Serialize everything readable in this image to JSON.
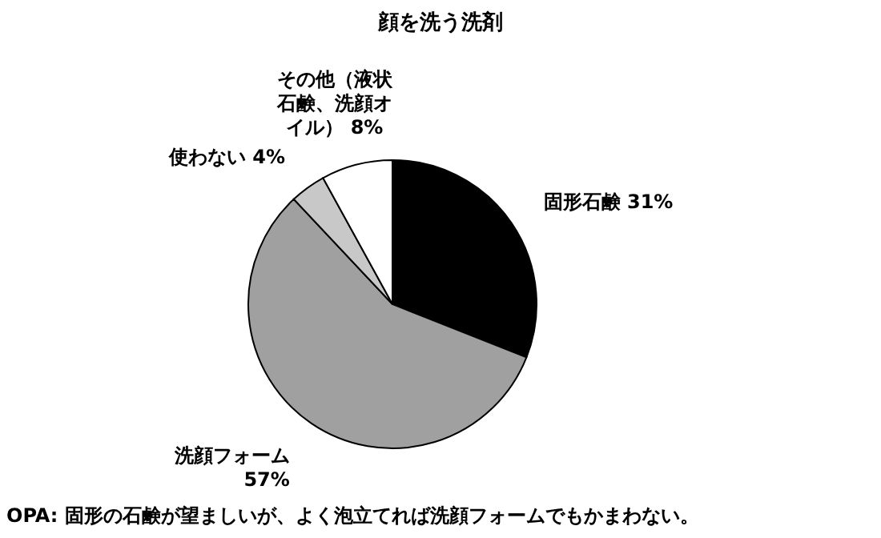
{
  "chart_data": {
    "type": "pie",
    "title": "顔を洗う洗剤",
    "categories": [
      "固形石鹸",
      "洗顔フォーム",
      "使わない",
      "その他（液状石鹸、洗顔オイル）"
    ],
    "values": [
      31,
      57,
      4,
      8
    ],
    "value_labels": [
      "31%",
      "57%",
      "4%",
      "8%"
    ],
    "colors": [
      "#000000",
      "#a0a0a0",
      "#c8c8c8",
      "#ffffff"
    ],
    "annotations": [
      "OPA: 固形の石鹸が望ましいが、よく泡立てれば洗顔フォームでもかまわない。"
    ]
  }
}
